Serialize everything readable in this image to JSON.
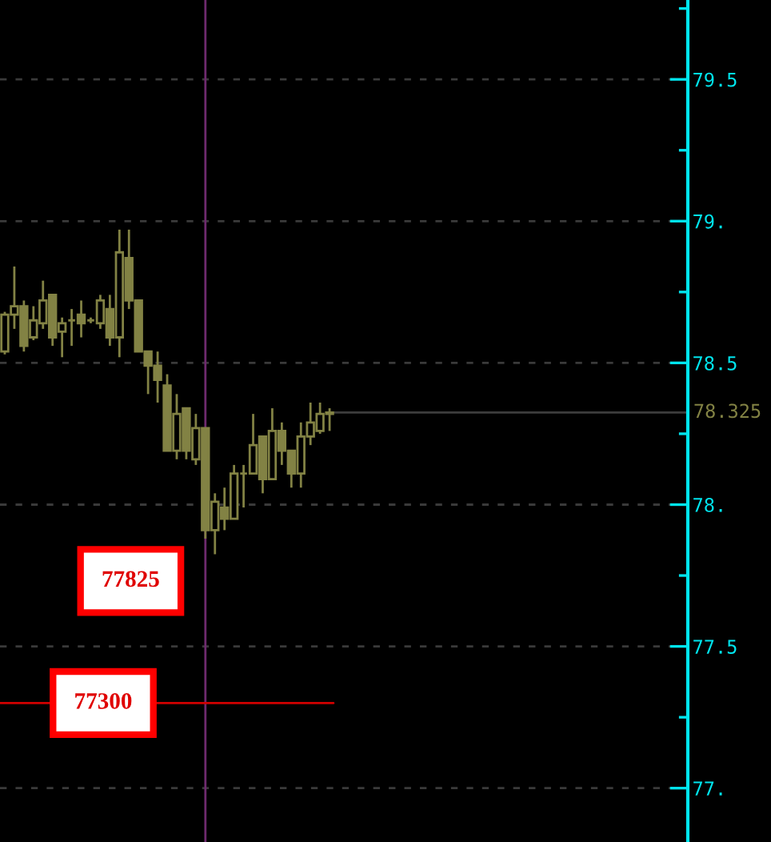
{
  "chart_data": {
    "type": "candlestick",
    "categories": [
      null,
      null,
      null,
      null,
      null,
      null,
      null,
      null,
      null,
      null,
      null,
      null,
      null,
      null,
      null,
      null,
      null,
      null,
      null,
      null,
      null,
      null,
      null,
      null,
      null,
      null,
      null,
      null,
      null,
      null,
      null,
      null,
      null,
      null,
      null,
      null,
      null,
      null,
      null,
      null,
      null,
      null,
      null,
      null,
      null,
      null,
      null,
      null,
      null,
      null,
      null,
      null,
      null,
      null,
      null,
      null,
      null,
      null,
      null,
      null,
      null,
      null,
      null,
      null,
      null,
      null,
      null,
      null,
      null,
      null,
      null,
      null
    ],
    "ohlc": [
      [
        78.54,
        78.68,
        78.53,
        78.67
      ],
      [
        78.67,
        78.84,
        78.62,
        78.7
      ],
      [
        78.7,
        78.72,
        78.54,
        78.56
      ],
      [
        78.59,
        78.7,
        78.58,
        78.65
      ],
      [
        78.64,
        78.79,
        78.62,
        78.72
      ],
      [
        78.74,
        78.74,
        78.56,
        78.59
      ],
      [
        78.61,
        78.66,
        78.52,
        78.64
      ],
      [
        78.65,
        78.69,
        78.56,
        78.65
      ],
      [
        78.67,
        78.72,
        78.59,
        78.64
      ],
      [
        78.65,
        78.66,
        78.64,
        78.65
      ],
      [
        78.64,
        78.74,
        78.62,
        78.72
      ],
      [
        78.69,
        78.74,
        78.56,
        78.59
      ],
      [
        78.59,
        78.97,
        78.52,
        78.89
      ],
      [
        78.87,
        78.97,
        78.69,
        78.72
      ],
      [
        78.72,
        78.72,
        78.54,
        78.54
      ],
      [
        78.54,
        78.54,
        78.39,
        78.49
      ],
      [
        78.49,
        78.54,
        78.36,
        78.44
      ],
      [
        78.42,
        78.46,
        78.19,
        78.19
      ],
      [
        78.19,
        78.39,
        78.16,
        78.32
      ],
      [
        78.34,
        78.34,
        78.16,
        78.19
      ],
      [
        78.16,
        78.32,
        78.14,
        78.27
      ],
      [
        78.27,
        78.27,
        77.88,
        77.91
      ],
      [
        77.91,
        78.04,
        77.825,
        78.01
      ],
      [
        77.99,
        78.06,
        77.91,
        77.95
      ],
      [
        77.95,
        78.14,
        77.95,
        78.11
      ],
      [
        78.11,
        78.14,
        77.99,
        78.11
      ],
      [
        78.11,
        78.32,
        78.11,
        78.21
      ],
      [
        78.24,
        78.24,
        78.04,
        78.09
      ],
      [
        78.09,
        78.34,
        78.09,
        78.26
      ],
      [
        78.26,
        78.29,
        78.14,
        78.19
      ],
      [
        78.19,
        78.19,
        78.06,
        78.11
      ],
      [
        78.11,
        78.29,
        78.06,
        78.24
      ],
      [
        78.24,
        78.36,
        78.21,
        78.29
      ],
      [
        78.26,
        78.36,
        78.25,
        78.32
      ],
      [
        78.32,
        78.34,
        78.26,
        78.325
      ],
      null,
      null,
      null,
      null,
      null,
      null,
      null,
      null,
      null,
      null,
      null,
      null,
      null,
      null,
      null,
      null,
      null,
      null,
      null,
      null,
      null,
      null,
      null,
      null,
      null,
      null,
      null,
      null,
      null,
      null,
      null,
      null,
      null,
      null,
      null,
      null,
      null
    ],
    "color": "#828244",
    "ylim": [
      76.81,
      79.78
    ],
    "yticks": [
      {
        "value": 77,
        "label": "77."
      },
      {
        "value": 77.25,
        "label": null
      },
      {
        "value": 77.5,
        "label": "77.5"
      },
      {
        "value": 77.75,
        "label": null
      },
      {
        "value": 78,
        "label": "78."
      },
      {
        "value": 78.25,
        "label": null
      },
      {
        "value": 78.5,
        "label": "78.5"
      },
      {
        "value": 78.75,
        "label": null
      },
      {
        "value": 79,
        "label": "79."
      },
      {
        "value": 79.25,
        "label": null
      },
      {
        "value": 79.5,
        "label": "79.5"
      },
      {
        "value": 79.75,
        "label": null
      }
    ],
    "grid": "y",
    "tick_labels": "y",
    "ref_lines": [
      {
        "axis": "y",
        "value": 77.3,
        "color": "#d00000"
      },
      {
        "axis": "y",
        "value": 78.325,
        "label": "78.325",
        "color": "#3c3c3c"
      }
    ],
    "annotations": [
      "77825",
      {
        "text": "77300",
        "y": 77.3
      }
    ]
  }
}
